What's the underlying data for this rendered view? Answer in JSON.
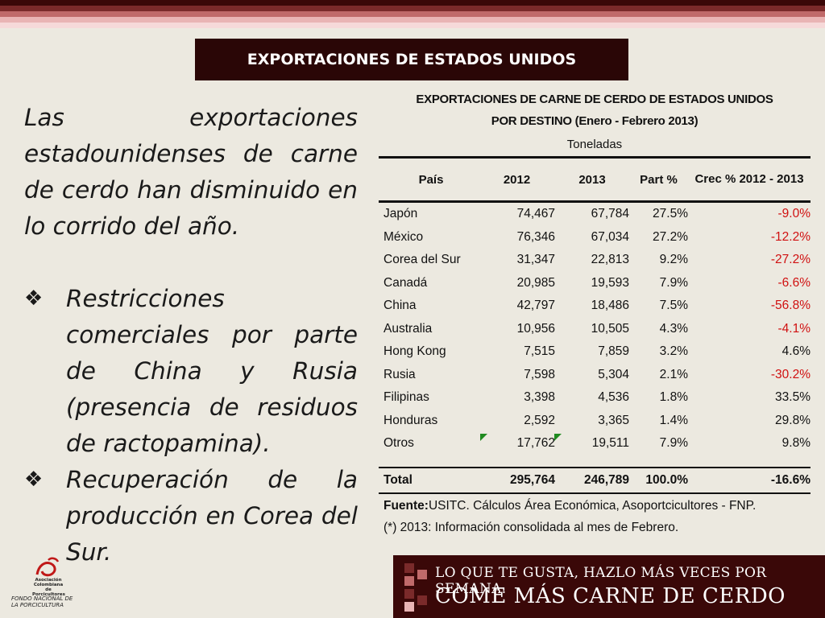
{
  "colors": {
    "stripes": [
      "#3a0808",
      "#7a2a2a",
      "#c06a6a",
      "#e9b4b4",
      "#f6d9d9"
    ],
    "title_bg": "#2a0606",
    "negative": "#d01010",
    "banner": "#3a0808"
  },
  "slide_title": "EXPORTACIONES DE ESTADOS UNIDOS",
  "left": {
    "para1": "Las exportaciones estadounidenses de carne de cerdo han disminuido en lo corrido del año.",
    "bullet1": " Restricciones comerciales por parte de China y Rusia (presencia de residuos de ractopamina).",
    "bullet2": "Recuperación de la producción en Corea del Sur.",
    "bullet_icon": "diamond-bullet-icon"
  },
  "table": {
    "title1": "EXPORTACIONES DE CARNE DE CERDO DE ESTADOS UNIDOS",
    "title2": "POR DESTINO (Enero - Febrero 2013)",
    "unit": "Toneladas",
    "headers": [
      "País",
      "2012",
      "2013",
      "Part %",
      "Crec % 2012 - 2013"
    ],
    "rows": [
      [
        "Japón",
        "74,467",
        "67,784",
        "27.5%",
        "-9.0%"
      ],
      [
        "México",
        "76,346",
        "67,034",
        "27.2%",
        "-12.2%"
      ],
      [
        "Corea del Sur",
        "31,347",
        "22,813",
        "9.2%",
        "-27.2%"
      ],
      [
        "Canadá",
        "20,985",
        "19,593",
        "7.9%",
        "-6.6%"
      ],
      [
        "China",
        "42,797",
        "18,486",
        "7.5%",
        "-56.8%"
      ],
      [
        "Australia",
        "10,956",
        "10,505",
        "4.3%",
        "-4.1%"
      ],
      [
        "Hong Kong",
        "7,515",
        "7,859",
        "3.2%",
        "4.6%"
      ],
      [
        "Rusia",
        "7,598",
        "5,304",
        "2.1%",
        "-30.2%"
      ],
      [
        "Filipinas",
        "3,398",
        "4,536",
        "1.8%",
        "33.5%"
      ],
      [
        "Honduras",
        "2,592",
        "3,365",
        "1.4%",
        "29.8%"
      ],
      [
        "Otros",
        "17,762",
        "19,511",
        "7.9%",
        "9.8%"
      ]
    ],
    "total": [
      "Total",
      "295,764",
      "246,789",
      "100.0%",
      "-16.6%"
    ],
    "source_label": "Fuente:",
    "source_text": "USITC. Cálculos Área Económica, Asoportcicultores - FNP.",
    "note": "(*) 2013: Información consolidada al mes de Febrero."
  },
  "banner": {
    "line1": "LO QUE TE GUSTA, HAZLO MÁS VECES POR SEMANA.",
    "line2": "COME MÁS CARNE DE CERDO"
  },
  "logo": {
    "org1": "Asociación Colombiana de Porcicultores",
    "org2": "FONDO NACIONAL DE LA PORCICULTURA"
  }
}
